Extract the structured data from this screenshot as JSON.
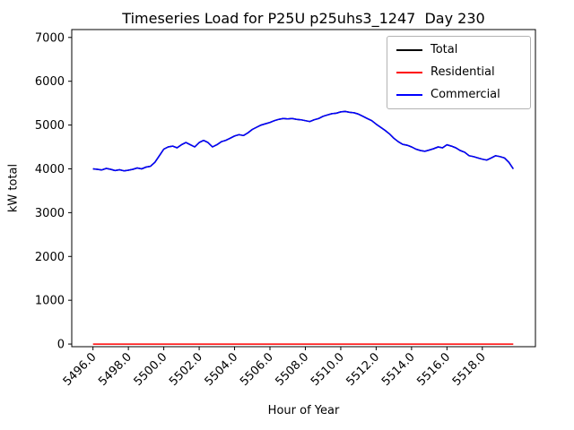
{
  "chart_data": {
    "type": "line",
    "title": "Timeseries Load for P25U p25uhs3_1247  Day 230",
    "xlabel": "Hour of Year",
    "ylabel": "kW total",
    "xlim": [
      5494.8,
      5521.0
    ],
    "ylim": [
      -60,
      7180
    ],
    "grid": false,
    "xticks": [
      5496,
      5498,
      5500,
      5502,
      5504,
      5506,
      5508,
      5510,
      5512,
      5514,
      5516,
      5518
    ],
    "xtick_labels": [
      "5496.0",
      "5498.0",
      "5500.0",
      "5502.0",
      "5504.0",
      "5506.0",
      "5508.0",
      "5510.0",
      "5512.0",
      "5514.0",
      "5516.0",
      "5518.0"
    ],
    "yticks": [
      0,
      1000,
      2000,
      3000,
      4000,
      5000,
      6000,
      7000
    ],
    "ytick_labels": [
      "0",
      "1000",
      "2000",
      "3000",
      "4000",
      "5000",
      "6000",
      "7000"
    ],
    "legend": {
      "position": "upper right",
      "entries": [
        {
          "name": "Total",
          "color": "#000000"
        },
        {
          "name": "Residential",
          "color": "#ff0000"
        },
        {
          "name": "Commercial",
          "color": "#0000ff"
        }
      ]
    },
    "x": [
      5496.0,
      5496.25,
      5496.5,
      5496.75,
      5497.0,
      5497.25,
      5497.5,
      5497.75,
      5498.0,
      5498.25,
      5498.5,
      5498.75,
      5499.0,
      5499.25,
      5499.5,
      5499.75,
      5500.0,
      5500.25,
      5500.5,
      5500.75,
      5501.0,
      5501.25,
      5501.5,
      5501.75,
      5502.0,
      5502.25,
      5502.5,
      5502.75,
      5503.0,
      5503.25,
      5503.5,
      5503.75,
      5504.0,
      5504.25,
      5504.5,
      5504.75,
      5505.0,
      5505.25,
      5505.5,
      5505.75,
      5506.0,
      5506.25,
      5506.5,
      5506.75,
      5507.0,
      5507.25,
      5507.5,
      5507.75,
      5508.0,
      5508.25,
      5508.5,
      5508.75,
      5509.0,
      5509.25,
      5509.5,
      5509.75,
      5510.0,
      5510.25,
      5510.5,
      5510.75,
      5511.0,
      5511.25,
      5511.5,
      5511.75,
      5512.0,
      5512.25,
      5512.5,
      5512.75,
      5513.0,
      5513.25,
      5513.5,
      5513.75,
      5514.0,
      5514.25,
      5514.5,
      5514.75,
      5515.0,
      5515.25,
      5515.5,
      5515.75,
      5516.0,
      5516.25,
      5516.5,
      5516.75,
      5517.0,
      5517.25,
      5517.5,
      5517.75,
      5518.0,
      5518.25,
      5518.5,
      5518.75,
      5519.0,
      5519.25,
      5519.5,
      5519.75
    ],
    "series": [
      {
        "name": "Total",
        "color": "#000000",
        "values": [
          4000,
          3990,
          3975,
          4010,
          3990,
          3960,
          3980,
          3955,
          3970,
          3990,
          4020,
          4000,
          4040,
          4060,
          4150,
          4300,
          4450,
          4500,
          4520,
          4480,
          4550,
          4600,
          4550,
          4500,
          4600,
          4650,
          4600,
          4500,
          4550,
          4620,
          4650,
          4700,
          4750,
          4780,
          4760,
          4820,
          4900,
          4950,
          5000,
          5030,
          5060,
          5100,
          5130,
          5150,
          5140,
          5150,
          5130,
          5120,
          5100,
          5080,
          5120,
          5150,
          5200,
          5230,
          5260,
          5270,
          5300,
          5310,
          5290,
          5280,
          5250,
          5200,
          5150,
          5100,
          5020,
          4950,
          4880,
          4800,
          4700,
          4620,
          4560,
          4540,
          4500,
          4450,
          4420,
          4400,
          4430,
          4460,
          4500,
          4480,
          4550,
          4520,
          4480,
          4420,
          4380,
          4300,
          4280,
          4250,
          4220,
          4200,
          4250,
          4300,
          4280,
          4250,
          4150,
          4000
        ]
      },
      {
        "name": "Residential",
        "color": "#ff0000",
        "values": [
          0,
          0,
          0,
          0,
          0,
          0,
          0,
          0,
          0,
          0,
          0,
          0,
          0,
          0,
          0,
          0,
          0,
          0,
          0,
          0,
          0,
          0,
          0,
          0,
          0,
          0,
          0,
          0,
          0,
          0,
          0,
          0,
          0,
          0,
          0,
          0,
          0,
          0,
          0,
          0,
          0,
          0,
          0,
          0,
          0,
          0,
          0,
          0,
          0,
          0,
          0,
          0,
          0,
          0,
          0,
          0,
          0,
          0,
          0,
          0,
          0,
          0,
          0,
          0,
          0,
          0,
          0,
          0,
          0,
          0,
          0,
          0,
          0,
          0,
          0,
          0,
          0,
          0,
          0,
          0,
          0,
          0,
          0,
          0,
          0,
          0,
          0,
          0,
          0,
          0,
          0,
          0,
          0,
          0,
          0,
          0
        ]
      },
      {
        "name": "Commercial",
        "color": "#0000ff",
        "values": [
          4000,
          3990,
          3975,
          4010,
          3990,
          3960,
          3980,
          3955,
          3970,
          3990,
          4020,
          4000,
          4040,
          4060,
          4150,
          4300,
          4450,
          4500,
          4520,
          4480,
          4550,
          4600,
          4550,
          4500,
          4600,
          4650,
          4600,
          4500,
          4550,
          4620,
          4650,
          4700,
          4750,
          4780,
          4760,
          4820,
          4900,
          4950,
          5000,
          5030,
          5060,
          5100,
          5130,
          5150,
          5140,
          5150,
          5130,
          5120,
          5100,
          5080,
          5120,
          5150,
          5200,
          5230,
          5260,
          5270,
          5300,
          5310,
          5290,
          5280,
          5250,
          5200,
          5150,
          5100,
          5020,
          4950,
          4880,
          4800,
          4700,
          4620,
          4560,
          4540,
          4500,
          4450,
          4420,
          4400,
          4430,
          4460,
          4500,
          4480,
          4550,
          4520,
          4480,
          4420,
          4380,
          4300,
          4280,
          4250,
          4220,
          4200,
          4250,
          4300,
          4280,
          4250,
          4150,
          4000
        ]
      }
    ]
  }
}
